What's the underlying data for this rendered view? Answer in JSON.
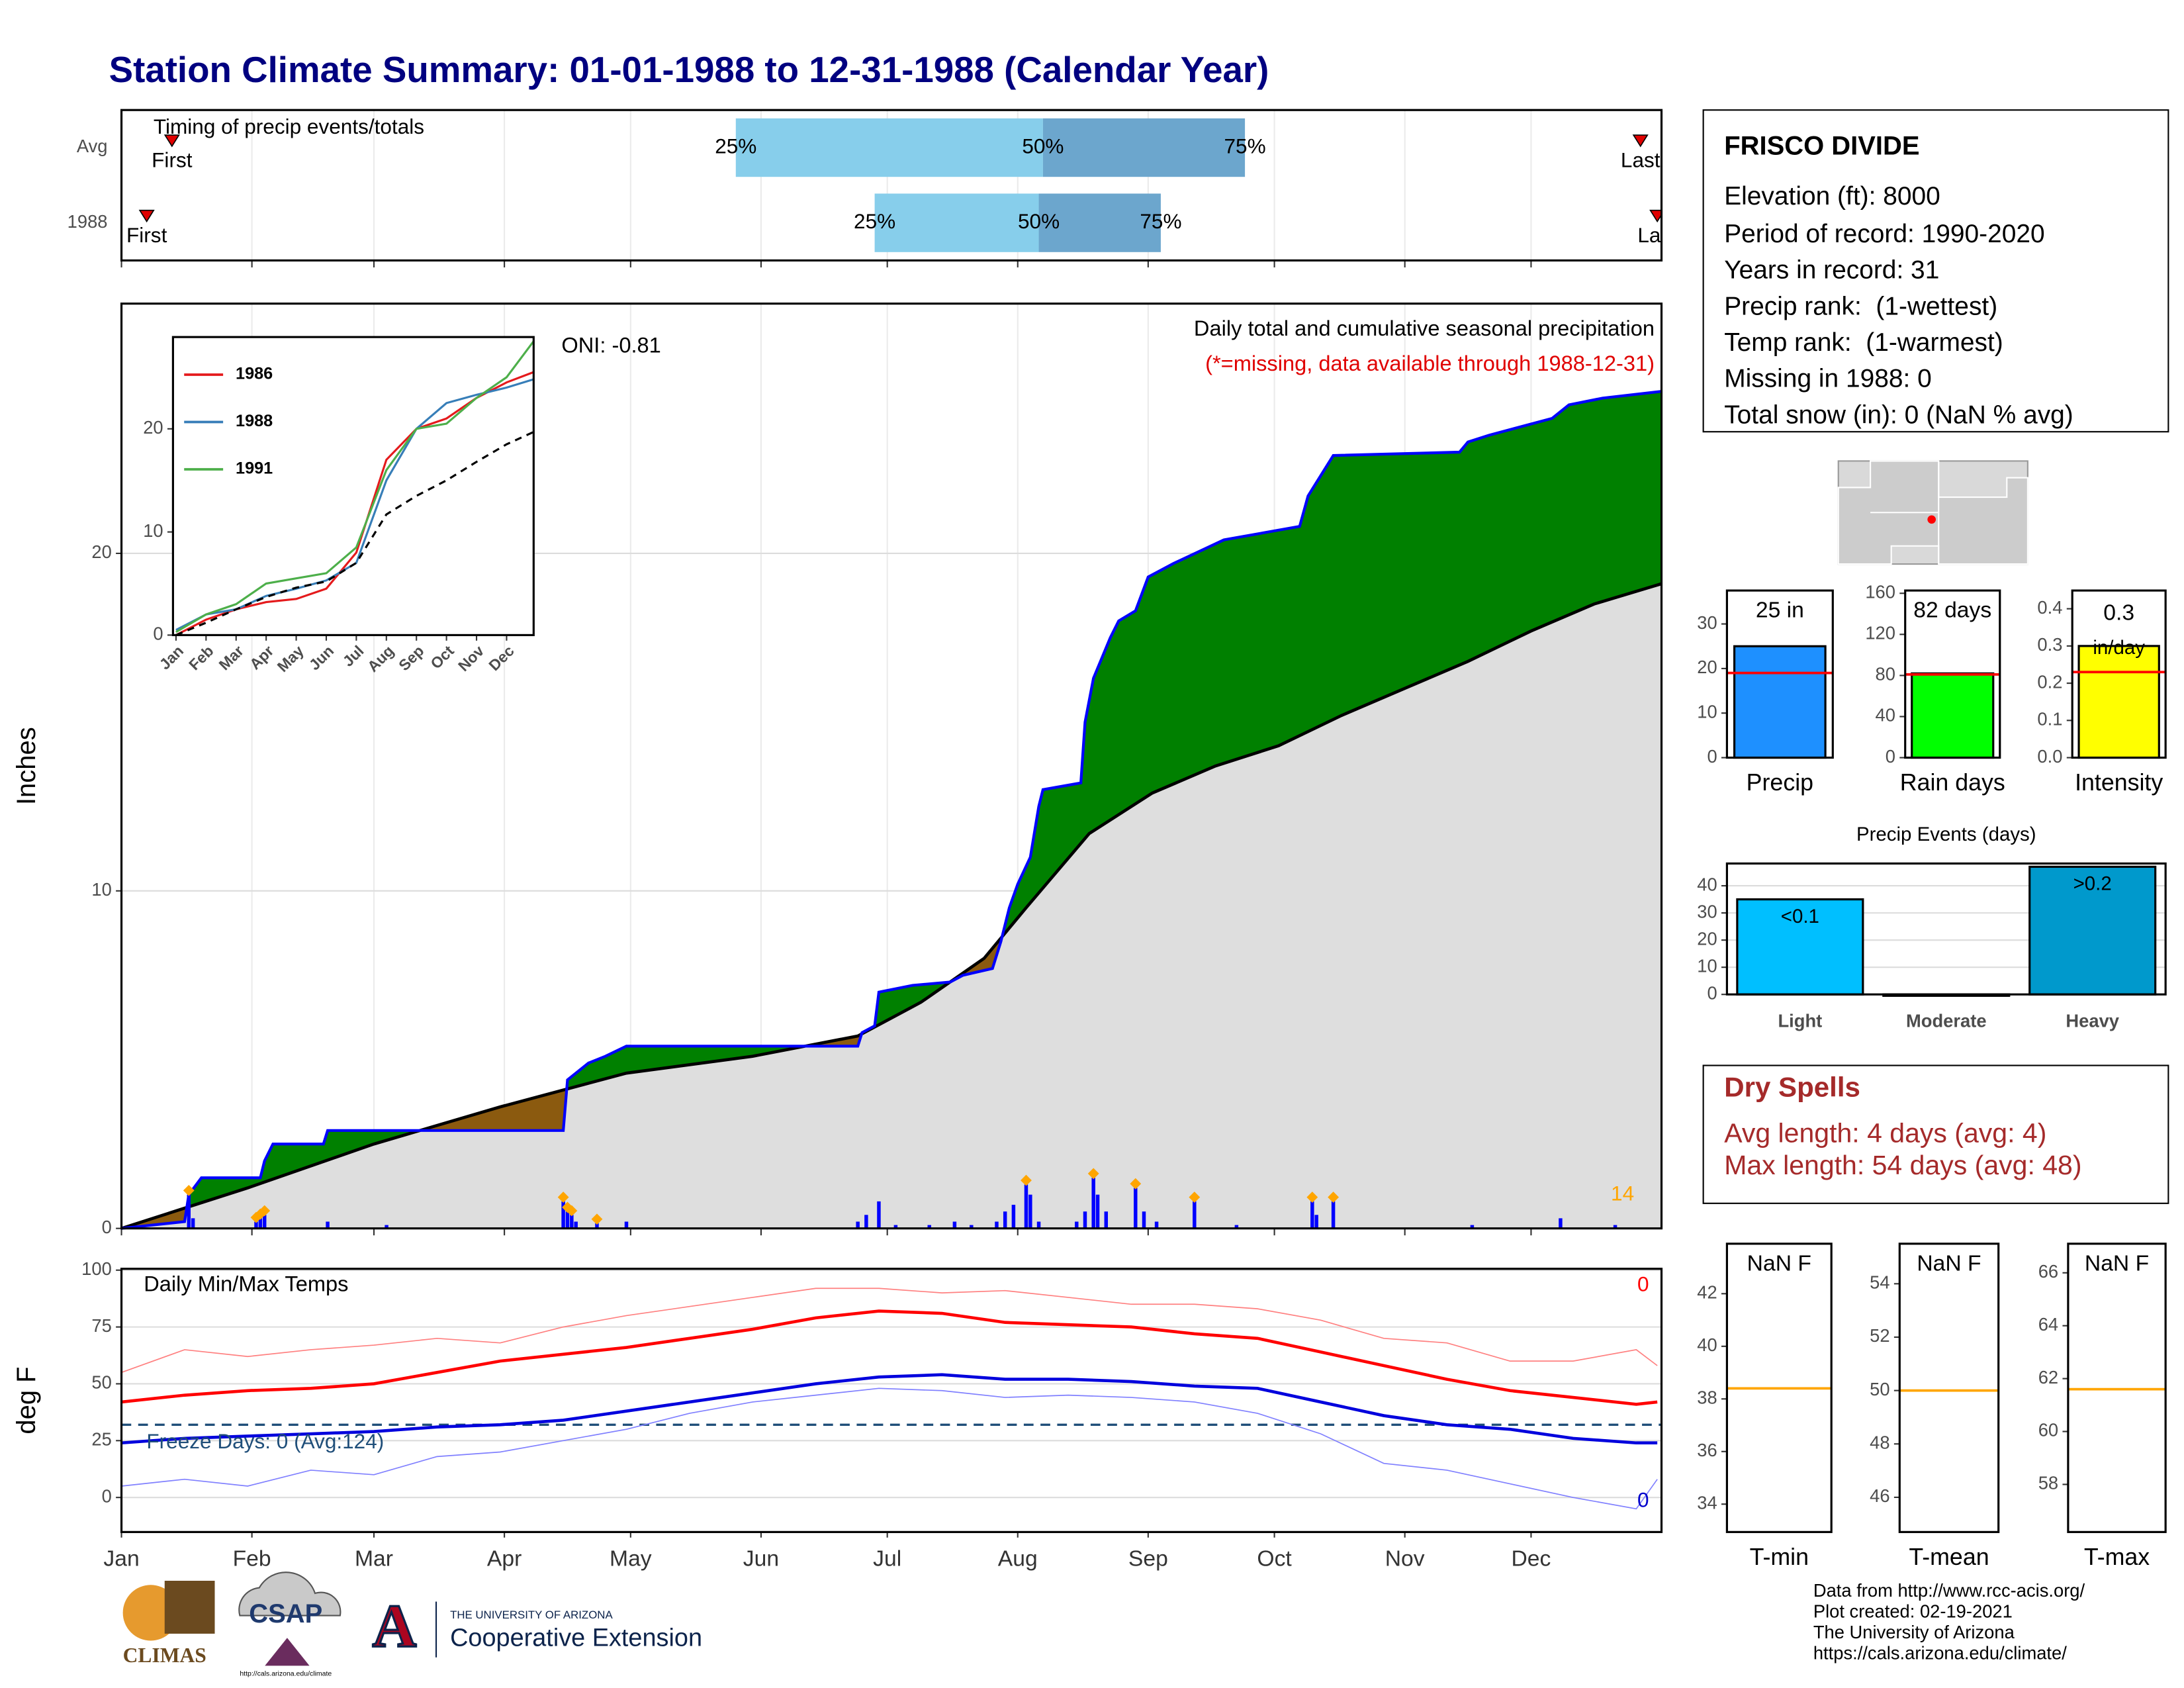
{
  "title": "Station Climate Summary: 01-01-1988 to 12-31-1988 (Calendar Year)",
  "station": {
    "name": "FRISCO DIVIDE",
    "lines": [
      "Elevation (ft): 8000",
      "Period of record: 1990-2020",
      "Years in record: 31",
      "Precip rank:  (1-wettest)",
      "Temp rank:  (1-warmest)",
      "Missing in 1988: 0",
      "Total snow (in): 0 (NaN % avg)"
    ]
  },
  "dry_spells": {
    "title": "Dry Spells",
    "lines": [
      "Avg length: 4 days (avg: 4)",
      "Max length: 54 days (avg: 48)"
    ]
  },
  "footer": [
    "Data from http://www.rcc-acis.org/",
    "Plot created: 02-19-2021",
    "The University of Arizona",
    "https://cals.arizona.edu/climate/"
  ],
  "logos": {
    "climas": "CLIMAS",
    "csap": "CSAP",
    "csap_url": "http://cals.arizona.edu/climate",
    "ua": "THE UNIVERSITY OF ARIZONA",
    "extension": "Cooperative Extension",
    "letter": "A"
  },
  "chart_data": [
    {
      "type": "timing",
      "title": "Timing of precip events/totals",
      "xlim": [
        0,
        366
      ],
      "rows": [
        {
          "name": "Avg",
          "first": 12,
          "p25": 146,
          "p50": 219,
          "p75": 267,
          "last": 361
        },
        {
          "name": "1988",
          "first": 6,
          "p25": 179,
          "p50": 218,
          "p75": 247,
          "last": 365
        }
      ],
      "labels": {
        "first": "First",
        "last": "Last",
        "p25": "25%",
        "p50": "50%",
        "p75": "75%"
      },
      "colors": {
        "lower": "#87ceeb",
        "upper": "#6ca6cd",
        "marker": "#e00000"
      }
    },
    {
      "type": "cumulative",
      "title": "Daily total and cumulative seasonal precipitation",
      "subtitle": "(*=missing, data available through 1988-12-31)",
      "annotation": "ONI: -0.81",
      "ylabel": "Inches",
      "xlim": [
        0,
        366
      ],
      "ylim": [
        0,
        27.4
      ],
      "yticks": [
        0,
        10,
        20
      ],
      "grid": true,
      "series": [
        {
          "color": "#0000ff",
          "x": [
            0,
            15,
            16,
            19,
            33,
            34,
            36,
            48,
            49,
            58,
            105,
            106,
            108,
            111,
            115,
            120,
            175,
            176,
            179,
            180,
            188,
            197,
            200,
            207,
            209,
            211,
            213,
            216,
            218,
            219,
            228,
            229,
            231,
            235,
            237,
            241,
            244,
            250,
            262,
            280,
            282,
            288,
            318,
            320,
            325,
            340,
            344,
            352,
            366
          ],
          "values": [
            0,
            0.2,
            1.0,
            1.5,
            1.5,
            2.0,
            2.5,
            2.5,
            2.9,
            2.9,
            2.9,
            4.4,
            4.6,
            4.9,
            5.1,
            5.4,
            5.4,
            5.8,
            6.0,
            7.0,
            7.2,
            7.3,
            7.5,
            7.7,
            8.5,
            9.5,
            10.2,
            11.0,
            12.5,
            13.0,
            13.2,
            15.0,
            16.3,
            17.5,
            18.0,
            18.3,
            19.3,
            19.7,
            20.4,
            20.8,
            21.7,
            22.9,
            23.0,
            23.3,
            23.5,
            24.0,
            24.4,
            24.6,
            24.8
          ]
        },
        {
          "color": "#000000",
          "x": [
            0,
            30,
            60,
            90,
            120,
            150,
            175,
            190,
            205,
            215,
            230,
            245,
            260,
            275,
            290,
            305,
            320,
            335,
            350,
            366
          ],
          "values": [
            0,
            1.2,
            2.5,
            3.6,
            4.6,
            5.1,
            5.7,
            6.7,
            8.0,
            9.5,
            11.7,
            12.9,
            13.7,
            14.3,
            15.2,
            16.0,
            16.8,
            17.7,
            18.5,
            19.1
          ]
        }
      ],
      "fills": {
        "above": "#008000",
        "below": "#8b5a0f",
        "base": "#dedede"
      },
      "daily": {
        "color": "#0000ff",
        "x": [
          16,
          17,
          32,
          33,
          34,
          49,
          63,
          105,
          106,
          107,
          108,
          113,
          120,
          175,
          177,
          180,
          184,
          192,
          198,
          202,
          208,
          210,
          212,
          215,
          216,
          218,
          227,
          229,
          231,
          232,
          234,
          241,
          243,
          246,
          255,
          265,
          283,
          284,
          288,
          321,
          342,
          355
        ],
        "values": [
          1.0,
          0.3,
          0.2,
          0.3,
          0.4,
          0.2,
          0.1,
          0.8,
          0.5,
          0.4,
          0.2,
          0.15,
          0.2,
          0.2,
          0.4,
          0.8,
          0.1,
          0.1,
          0.2,
          0.1,
          0.2,
          0.5,
          0.7,
          1.3,
          1.0,
          0.2,
          0.2,
          0.5,
          1.5,
          1.0,
          0.5,
          1.2,
          0.5,
          0.2,
          0.8,
          0.1,
          0.8,
          0.4,
          0.8,
          0.1,
          0.3,
          0.1
        ]
      },
      "flags": {
        "color": "#ffa500",
        "x": [
          16,
          32,
          33,
          34,
          105,
          106,
          107,
          113,
          215,
          231,
          241,
          255,
          283,
          288
        ],
        "values": [
          1.0,
          0.2,
          0.3,
          0.4,
          0.8,
          0.5,
          0.4,
          0.15,
          1.3,
          1.5,
          1.2,
          0.8,
          0.8,
          0.8
        ]
      },
      "flag_count": 14
    },
    {
      "type": "line",
      "xlim": [
        -0.1,
        11.9
      ],
      "ylim": [
        0,
        28.9
      ],
      "yticks": [
        0,
        10,
        20
      ],
      "xtick_angle": -45,
      "legend": "upper left",
      "xticks": [
        {
          "value": 0,
          "label": "Jan"
        },
        {
          "value": 1,
          "label": "Feb"
        },
        {
          "value": 2,
          "label": "Mar"
        },
        {
          "value": 3,
          "label": "Apr"
        },
        {
          "value": 4,
          "label": "May"
        },
        {
          "value": 5,
          "label": "Jun"
        },
        {
          "value": 6,
          "label": "Jul"
        },
        {
          "value": 7,
          "label": "Aug"
        },
        {
          "value": 8,
          "label": "Sep"
        },
        {
          "value": 9,
          "label": "Oct"
        },
        {
          "value": 10,
          "label": "Nov"
        },
        {
          "value": 11,
          "label": "Dec"
        }
      ],
      "x": [
        0,
        1,
        2,
        3,
        4,
        5,
        6,
        7,
        8,
        9,
        10,
        11,
        11.9
      ],
      "series": [
        {
          "name": "1986",
          "color": "#e41a1c",
          "values": [
            0,
            1.5,
            2.5,
            3.2,
            3.5,
            4.5,
            8,
            17,
            20,
            21,
            23,
            24.5,
            25.5
          ]
        },
        {
          "name": "1988",
          "color": "#377eb8",
          "values": [
            0.5,
            2,
            2.5,
            3.8,
            4.5,
            5.3,
            7,
            15,
            20,
            22.5,
            23.3,
            24,
            24.8
          ]
        },
        {
          "name": "1991",
          "color": "#4daf4a",
          "values": [
            0.3,
            2,
            3,
            5,
            5.5,
            6,
            8.5,
            16,
            20,
            20.5,
            23,
            25,
            28.5
          ]
        },
        {
          "color": "#000000",
          "dash": true,
          "values": [
            0,
            1.2,
            2.5,
            3.7,
            4.6,
            5.2,
            7,
            11.7,
            13.5,
            15,
            16.8,
            18.5,
            19.7
          ]
        }
      ]
    },
    {
      "type": "line",
      "title": "Daily Min/Max Temps",
      "ylabel": "deg F",
      "xlim": [
        0,
        366
      ],
      "ylim": [
        -15.2,
        100.6
      ],
      "yticks": [
        0,
        25,
        50,
        75,
        100
      ],
      "grid": true,
      "xticks": [
        {
          "value": 0,
          "label": "Jan"
        },
        {
          "value": 31,
          "label": "Feb"
        },
        {
          "value": 60,
          "label": "Mar"
        },
        {
          "value": 91,
          "label": "Apr"
        },
        {
          "value": 121,
          "label": "May"
        },
        {
          "value": 152,
          "label": "Jun"
        },
        {
          "value": 182,
          "label": "Jul"
        },
        {
          "value": 213,
          "label": "Aug"
        },
        {
          "value": 244,
          "label": "Sep"
        },
        {
          "value": 274,
          "label": "Oct"
        },
        {
          "value": 305,
          "label": "Nov"
        },
        {
          "value": 335,
          "label": "Dec"
        }
      ],
      "x": [
        0,
        15,
        30,
        45,
        60,
        75,
        90,
        105,
        120,
        135,
        150,
        165,
        180,
        195,
        210,
        225,
        240,
        255,
        270,
        285,
        300,
        315,
        330,
        345,
        360,
        365
      ],
      "series": [
        {
          "color": "#ff8080",
          "width": 0.8,
          "values": [
            55,
            65,
            62,
            65,
            67,
            70,
            68,
            75,
            80,
            84,
            88,
            92,
            92,
            90,
            91,
            88,
            85,
            85,
            83,
            78,
            70,
            68,
            60,
            60,
            65,
            58
          ]
        },
        {
          "color": "#8080ff",
          "width": 0.8,
          "values": [
            5,
            8,
            5,
            12,
            10,
            18,
            20,
            25,
            30,
            37,
            42,
            45,
            48,
            47,
            44,
            45,
            44,
            42,
            37,
            28,
            15,
            12,
            6,
            0,
            -5,
            8
          ]
        },
        {
          "color": "#ff0000",
          "width": 2.2,
          "values": [
            42,
            45,
            47,
            48,
            50,
            55,
            60,
            63,
            66,
            70,
            74,
            79,
            82,
            81,
            77,
            76,
            75,
            72,
            70,
            64,
            58,
            52,
            47,
            44,
            41,
            42
          ]
        },
        {
          "color": "#0000dd",
          "width": 2.2,
          "values": [
            24,
            26,
            27,
            28,
            29,
            31,
            32,
            34,
            38,
            42,
            46,
            50,
            53,
            54,
            52,
            52,
            51,
            49,
            48,
            42,
            36,
            32,
            30,
            26,
            24,
            24
          ]
        }
      ],
      "freeze": {
        "value": 32,
        "color": "#1f4e79",
        "label": "Freeze Days: 0 (Avg:124)"
      },
      "counts": [
        {
          "value": 0,
          "color": "#ff0000"
        },
        {
          "value": 0,
          "color": "#0000cc"
        }
      ]
    },
    {
      "type": "bar",
      "categories": [
        "Precip"
      ],
      "values": [
        25
      ],
      "value_labels": [
        "25 in"
      ],
      "color": "#1e90ff",
      "average": 19,
      "average_color": "#ff0000",
      "ylim": [
        0,
        37.5
      ],
      "yticks": [
        0,
        10,
        20,
        30
      ]
    },
    {
      "type": "bar",
      "categories": [
        "Rain days"
      ],
      "values": [
        82
      ],
      "value_labels": [
        "82 days"
      ],
      "color": "#00ff00",
      "average": 81,
      "average_color": "#ff0000",
      "ylim": [
        0,
        162.7
      ],
      "yticks": [
        0,
        40,
        80,
        120,
        160
      ]
    },
    {
      "type": "bar",
      "categories": [
        "Intensity"
      ],
      "values": [
        0.3
      ],
      "label_values": true,
      "unit_label": "in/day",
      "color": "#ffff00",
      "average": 0.23,
      "average_color": "#ff0000",
      "ylim": [
        0,
        0.449
      ],
      "yticks": [
        {
          "value": 0,
          "label": "0.0"
        },
        0.1,
        0.2,
        0.3,
        0.4
      ]
    },
    {
      "type": "bar",
      "title": "Precip Events (days)",
      "categories": [
        "Light",
        "Moderate",
        "Heavy"
      ],
      "values": [
        35,
        0,
        47
      ],
      "bar_labels": [
        "<0.1",
        null,
        ">0.2"
      ],
      "colors": [
        "#00bfff",
        "#00bfff",
        "#0099cc"
      ],
      "grid": true,
      "ylim": [
        0,
        48.2
      ],
      "yticks": [
        0,
        10,
        20,
        30,
        40
      ]
    },
    {
      "type": "bar",
      "categories": [
        "T-min"
      ],
      "values": [
        null
      ],
      "value_labels": [
        "NaN F"
      ],
      "color": "#cccccc",
      "average": 38.4,
      "average_color": "#ffa500",
      "ylim": [
        32.94,
        43.9
      ],
      "yticks": [
        34,
        36,
        38,
        40,
        42
      ]
    },
    {
      "type": "bar",
      "categories": [
        "T-mean"
      ],
      "values": [
        null
      ],
      "value_labels": [
        "NaN F"
      ],
      "color": "#cccccc",
      "average": 50.0,
      "average_color": "#ffa500",
      "ylim": [
        44.7,
        55.5
      ],
      "yticks": [
        46,
        48,
        50,
        52,
        54
      ]
    },
    {
      "type": "bar",
      "categories": [
        "T-max"
      ],
      "values": [
        null
      ],
      "value_labels": [
        "NaN F"
      ],
      "color": "#cccccc",
      "average": 61.6,
      "average_color": "#ffa500",
      "ylim": [
        56.2,
        67.1
      ],
      "yticks": [
        58,
        60,
        62,
        64,
        66
      ]
    }
  ]
}
